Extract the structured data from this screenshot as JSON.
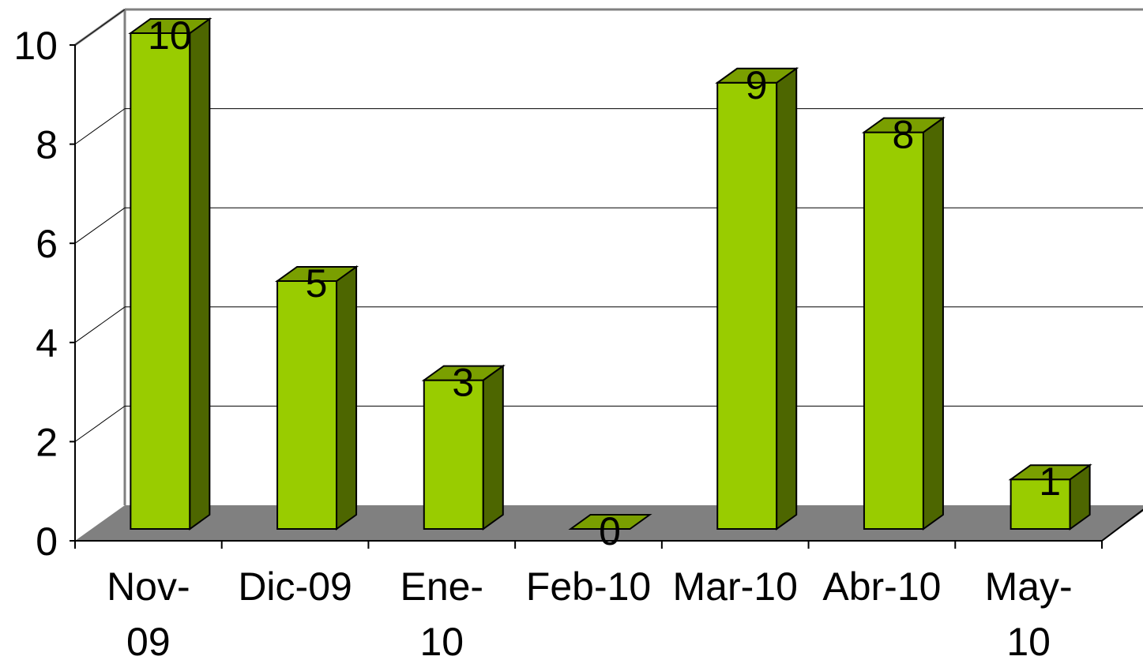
{
  "chart_data": {
    "type": "bar",
    "style": "3d-column",
    "categories": [
      [
        "Nov-",
        "09"
      ],
      [
        "Dic-09"
      ],
      [
        "Ene-",
        "10"
      ],
      [
        "Feb-10"
      ],
      [
        "Mar-10"
      ],
      [
        "Abr-10"
      ],
      [
        "May-",
        "10"
      ]
    ],
    "values": [
      10,
      5,
      3,
      0,
      9,
      8,
      1
    ],
    "data_labels": [
      "10",
      "5",
      "3",
      "0",
      "9",
      "8",
      "1"
    ],
    "yticks": [
      "0",
      "2",
      "4",
      "6",
      "8",
      "10"
    ],
    "ytick_values": [
      0,
      2,
      4,
      6,
      8,
      10
    ],
    "ylim": [
      0,
      10
    ],
    "grid": true,
    "legend": "none",
    "colors": {
      "bar_front": "#99cc00",
      "bar_side": "#4d6600",
      "bar_top": "#7a9f00",
      "floor": "#808080",
      "gridline": "#000000",
      "wall_edge": "#808080"
    }
  }
}
